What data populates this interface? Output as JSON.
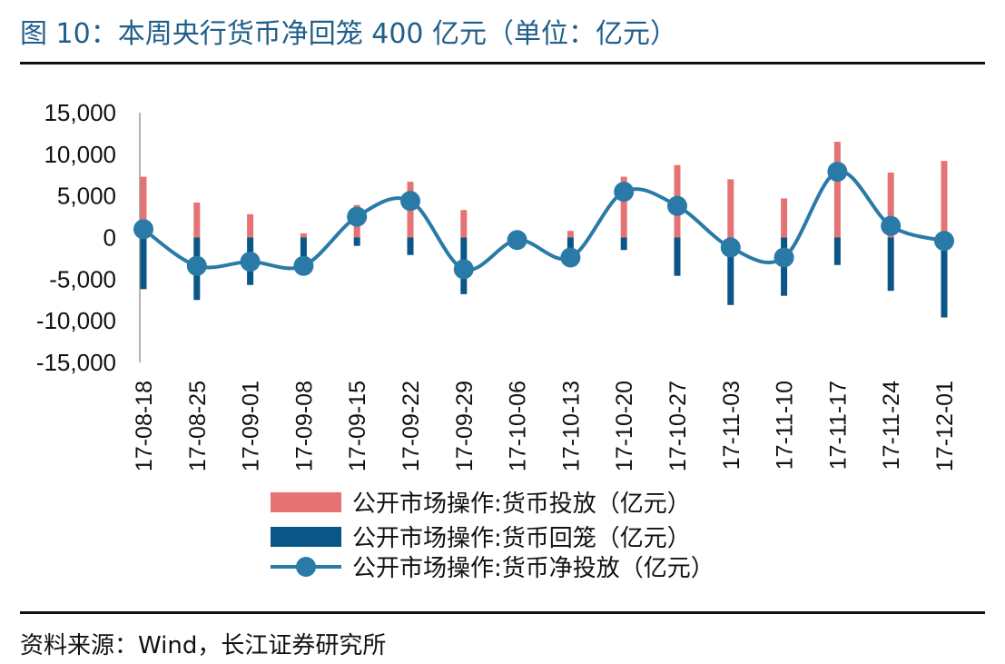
{
  "title": "图 10：本周央行货币净回笼 400 亿元（单位：亿元）",
  "source": "资料来源：Wind，长江证券研究所",
  "colors": {
    "injection": "#e57373",
    "withdrawal": "#0a5687",
    "net": "#2a7aa8",
    "title": "#1f5f8a"
  },
  "chart_data": {
    "type": "bar",
    "categories": [
      "17-08-18",
      "17-08-25",
      "17-09-01",
      "17-09-08",
      "17-09-15",
      "17-09-22",
      "17-09-29",
      "17-10-06",
      "17-10-13",
      "17-10-20",
      "17-10-27",
      "17-11-03",
      "17-11-10",
      "17-11-17",
      "17-11-24",
      "17-12-01"
    ],
    "ylim": [
      -15000,
      15000
    ],
    "yticks": [
      15000,
      10000,
      5000,
      0,
      -5000,
      -10000,
      -15000
    ],
    "ytick_labels": [
      "15,000",
      "10,000",
      "5,000",
      "0",
      "-5,000",
      "-10,000",
      "-15,000"
    ],
    "series": [
      {
        "name": "公开市场操作:货币投放（亿元）",
        "type": "bar",
        "values": [
          7300,
          4200,
          2800,
          500,
          3900,
          6700,
          3300,
          0,
          800,
          7300,
          8700,
          7000,
          4700,
          11500,
          7800,
          9200
        ]
      },
      {
        "name": "公开市场操作:货币回笼（亿元）",
        "type": "bar",
        "values": [
          -6200,
          -7500,
          -5700,
          -4000,
          -1000,
          -2100,
          -6800,
          0,
          -3300,
          -1500,
          -4600,
          -8100,
          -7000,
          -3300,
          -6400,
          -9600
        ]
      },
      {
        "name": "公开市场操作:货币净投放（亿元）",
        "type": "line",
        "values": [
          1000,
          -3400,
          -2900,
          -3400,
          2500,
          4400,
          -3800,
          -300,
          -2400,
          5500,
          3800,
          -1200,
          -2400,
          7900,
          1400,
          -400
        ]
      }
    ]
  }
}
